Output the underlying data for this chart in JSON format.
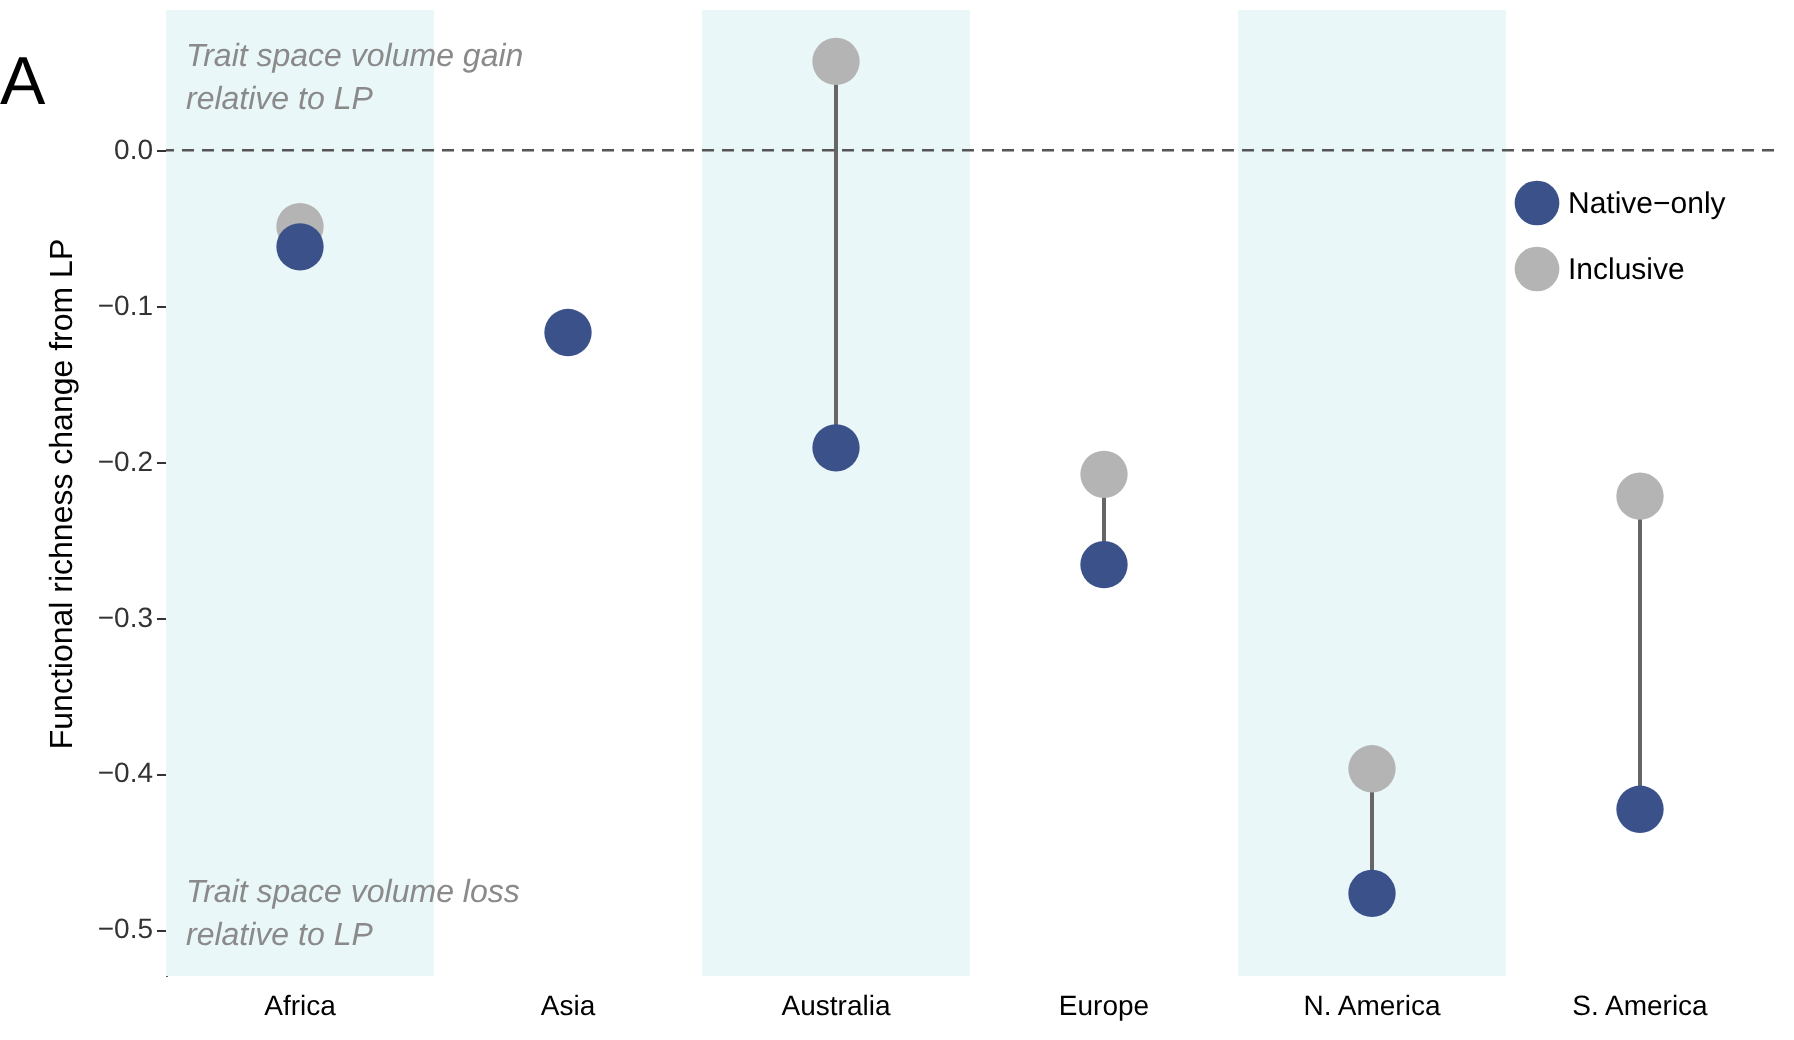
{
  "chart_data": {
    "type": "scatter",
    "ylabel": "Functional richness change from LP",
    "categories": [
      "Africa",
      "Asia",
      "Australia",
      "Europe",
      "N. America",
      "S. America"
    ],
    "series": [
      {
        "name": "Native−only",
        "color": "#3b5189",
        "values": [
          -0.062,
          -0.117,
          -0.191,
          -0.266,
          -0.477,
          -0.423
        ]
      },
      {
        "name": "Inclusive",
        "color": "#b4b4b4",
        "values": [
          -0.049,
          null,
          0.057,
          -0.208,
          -0.397,
          -0.222
        ]
      }
    ],
    "ylim": [
      -0.53,
      0.09
    ],
    "yticks": [
      {
        "value": -0.5,
        "label": "−0.5"
      },
      {
        "value": -0.4,
        "label": "−0.4"
      },
      {
        "value": -0.3,
        "label": "−0.3"
      },
      {
        "value": -0.2,
        "label": "−0.2"
      },
      {
        "value": -0.1,
        "label": "−0.1"
      },
      {
        "value": 0,
        "label": "0.0"
      }
    ],
    "ref_lines": [
      {
        "axis": "y",
        "value": 0,
        "line_style": "dashed",
        "color": "#555555"
      }
    ],
    "bands": [
      {
        "axis": "x",
        "from": "Africa",
        "to": "Africa",
        "color": "#eaf7f9"
      },
      {
        "axis": "x",
        "from": "Australia",
        "to": "Australia",
        "color": "#eaf7f9"
      },
      {
        "axis": "x",
        "from": "N. America",
        "to": "N. America",
        "color": "#eaf7f9"
      }
    ],
    "annotations": [
      "A",
      "Trait space volume gain\nrelative to LP",
      "Trait space volume loss\nrelative to LP"
    ],
    "legend": "top right",
    "grid": false,
    "marker": "circle"
  }
}
